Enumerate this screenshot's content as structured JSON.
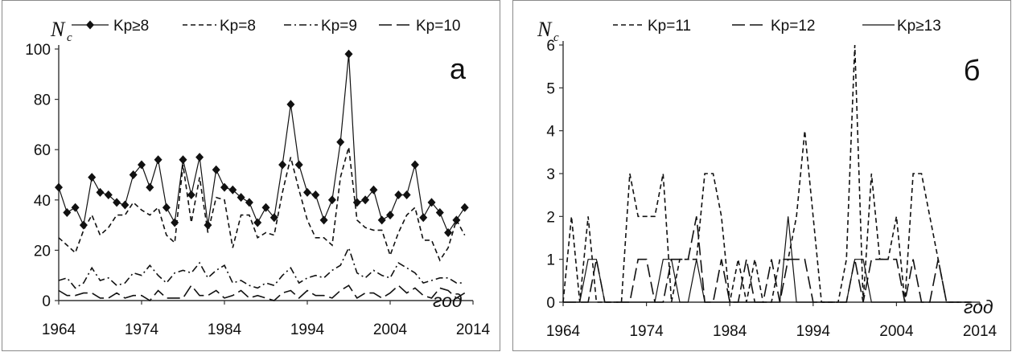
{
  "chart_data": [
    {
      "type": "line",
      "panel_label": "а",
      "ylabel": "N",
      "ylabel_sub": "c",
      "xlabel": "год",
      "xlim": [
        1964,
        2014
      ],
      "ylim": [
        0,
        100
      ],
      "xticks": [
        "1964",
        "1974",
        "1984",
        "1994",
        "2004",
        "2014"
      ],
      "yticks": [
        "0",
        "20",
        "40",
        "60",
        "80",
        "100"
      ],
      "legend_position": "top",
      "grid": false,
      "x": [
        1964,
        1965,
        1966,
        1967,
        1968,
        1969,
        1970,
        1971,
        1972,
        1973,
        1974,
        1975,
        1976,
        1977,
        1978,
        1979,
        1980,
        1981,
        1982,
        1983,
        1984,
        1985,
        1986,
        1987,
        1988,
        1989,
        1990,
        1991,
        1992,
        1993,
        1994,
        1995,
        1996,
        1997,
        1998,
        1999,
        2000,
        2001,
        2002,
        2003,
        2004,
        2005,
        2006,
        2007,
        2008,
        2009,
        2010,
        2011,
        2012,
        2013
      ],
      "series": [
        {
          "name": "Kp≥8",
          "style": "solid-diamond",
          "values": [
            45,
            35,
            37,
            30,
            49,
            43,
            42,
            39,
            38,
            50,
            54,
            45,
            56,
            37,
            31,
            56,
            42,
            57,
            30,
            52,
            45,
            44,
            41,
            39,
            31,
            37,
            33,
            54,
            78,
            54,
            43,
            42,
            32,
            40,
            63,
            98,
            39,
            40,
            44,
            32,
            34,
            42,
            42,
            54,
            33,
            39,
            35,
            27,
            32,
            37
          ]
        },
        {
          "name": "Kp=8",
          "style": "short-dash",
          "values": [
            25,
            22,
            19,
            28,
            34,
            26,
            29,
            34,
            34,
            39,
            36,
            34,
            37,
            26,
            23,
            54,
            31,
            49,
            27,
            41,
            40,
            21,
            34,
            34,
            25,
            27,
            26,
            43,
            57,
            44,
            32,
            25,
            25,
            22,
            49,
            61,
            32,
            29,
            28,
            28,
            18,
            27,
            34,
            37,
            24,
            24,
            16,
            21,
            32,
            26
          ]
        },
        {
          "name": "Kp=9",
          "style": "dash-dot",
          "values": [
            8,
            9,
            5,
            7,
            13,
            8,
            9,
            6,
            7,
            11,
            10,
            14,
            10,
            7,
            11,
            12,
            11,
            15,
            9,
            12,
            14,
            7,
            8,
            6,
            5,
            7,
            6,
            10,
            13,
            7,
            9,
            10,
            9,
            12,
            14,
            21,
            11,
            9,
            12,
            10,
            9,
            15,
            13,
            11,
            7,
            8,
            9,
            9,
            7,
            7
          ]
        },
        {
          "name": "Kp=10",
          "style": "long-dash",
          "values": [
            4,
            2,
            2,
            3,
            3,
            1,
            1,
            3,
            1,
            2,
            2,
            0,
            4,
            1,
            1,
            1,
            6,
            2,
            2,
            4,
            1,
            2,
            4,
            1,
            2,
            1,
            0,
            3,
            4,
            1,
            4,
            2,
            2,
            1,
            4,
            6,
            1,
            3,
            3,
            1,
            3,
            6,
            3,
            5,
            2,
            1,
            5,
            4,
            1,
            3
          ]
        }
      ]
    },
    {
      "type": "line",
      "panel_label": "б",
      "ylabel": "N",
      "ylabel_sub": "c",
      "xlabel": "год",
      "xlim": [
        1964,
        2014
      ],
      "ylim": [
        0,
        6
      ],
      "xticks": [
        "1964",
        "1974",
        "1984",
        "1994",
        "2004",
        "2014"
      ],
      "yticks": [
        "0",
        "1",
        "2",
        "3",
        "4",
        "5",
        "6"
      ],
      "legend_position": "top",
      "grid": false,
      "x": [
        1964,
        1965,
        1966,
        1967,
        1968,
        1969,
        1970,
        1971,
        1972,
        1973,
        1974,
        1975,
        1976,
        1977,
        1978,
        1979,
        1980,
        1981,
        1982,
        1983,
        1984,
        1985,
        1986,
        1987,
        1988,
        1989,
        1990,
        1991,
        1992,
        1993,
        1994,
        1995,
        1996,
        1997,
        1998,
        1999,
        2000,
        2001,
        2002,
        2003,
        2004,
        2005,
        2006,
        2007,
        2008,
        2009,
        2010,
        2011,
        2012,
        2013
      ],
      "series": [
        {
          "name": "Kp=11",
          "style": "short-dash",
          "values": [
            0,
            2,
            0,
            2,
            0,
            0,
            0,
            0,
            3,
            2,
            2,
            2,
            3,
            0,
            1,
            1,
            1,
            3,
            3,
            2,
            0,
            1,
            0,
            1,
            0,
            0,
            1,
            1,
            2,
            4,
            2,
            0,
            0,
            0,
            1,
            6,
            0,
            3,
            1,
            1,
            2,
            0,
            3,
            3,
            2,
            1,
            0,
            0,
            0,
            0
          ]
        },
        {
          "name": "Kp=12",
          "style": "long-dash",
          "values": [
            0,
            0,
            0,
            0,
            1,
            0,
            0,
            0,
            0,
            1,
            1,
            0,
            0,
            1,
            1,
            1,
            2,
            0,
            0,
            1,
            0,
            0,
            1,
            0,
            0,
            1,
            0,
            1,
            1,
            1,
            0,
            0,
            0,
            0,
            0,
            1,
            0,
            1,
            1,
            1,
            1,
            0,
            1,
            0,
            0,
            1,
            0,
            0,
            0,
            0
          ]
        },
        {
          "name": "Kp≥13",
          "style": "solid",
          "values": [
            0,
            0,
            0,
            1,
            1,
            0,
            0,
            0,
            0,
            0,
            0,
            0,
            1,
            1,
            0,
            0,
            1,
            0,
            0,
            0,
            0,
            0,
            0,
            0,
            0,
            0,
            0,
            2,
            0,
            0,
            0,
            0,
            0,
            0,
            0,
            1,
            1,
            0,
            0,
            0,
            0,
            0,
            0,
            0,
            0,
            0,
            0,
            0,
            0,
            0
          ]
        }
      ]
    }
  ]
}
